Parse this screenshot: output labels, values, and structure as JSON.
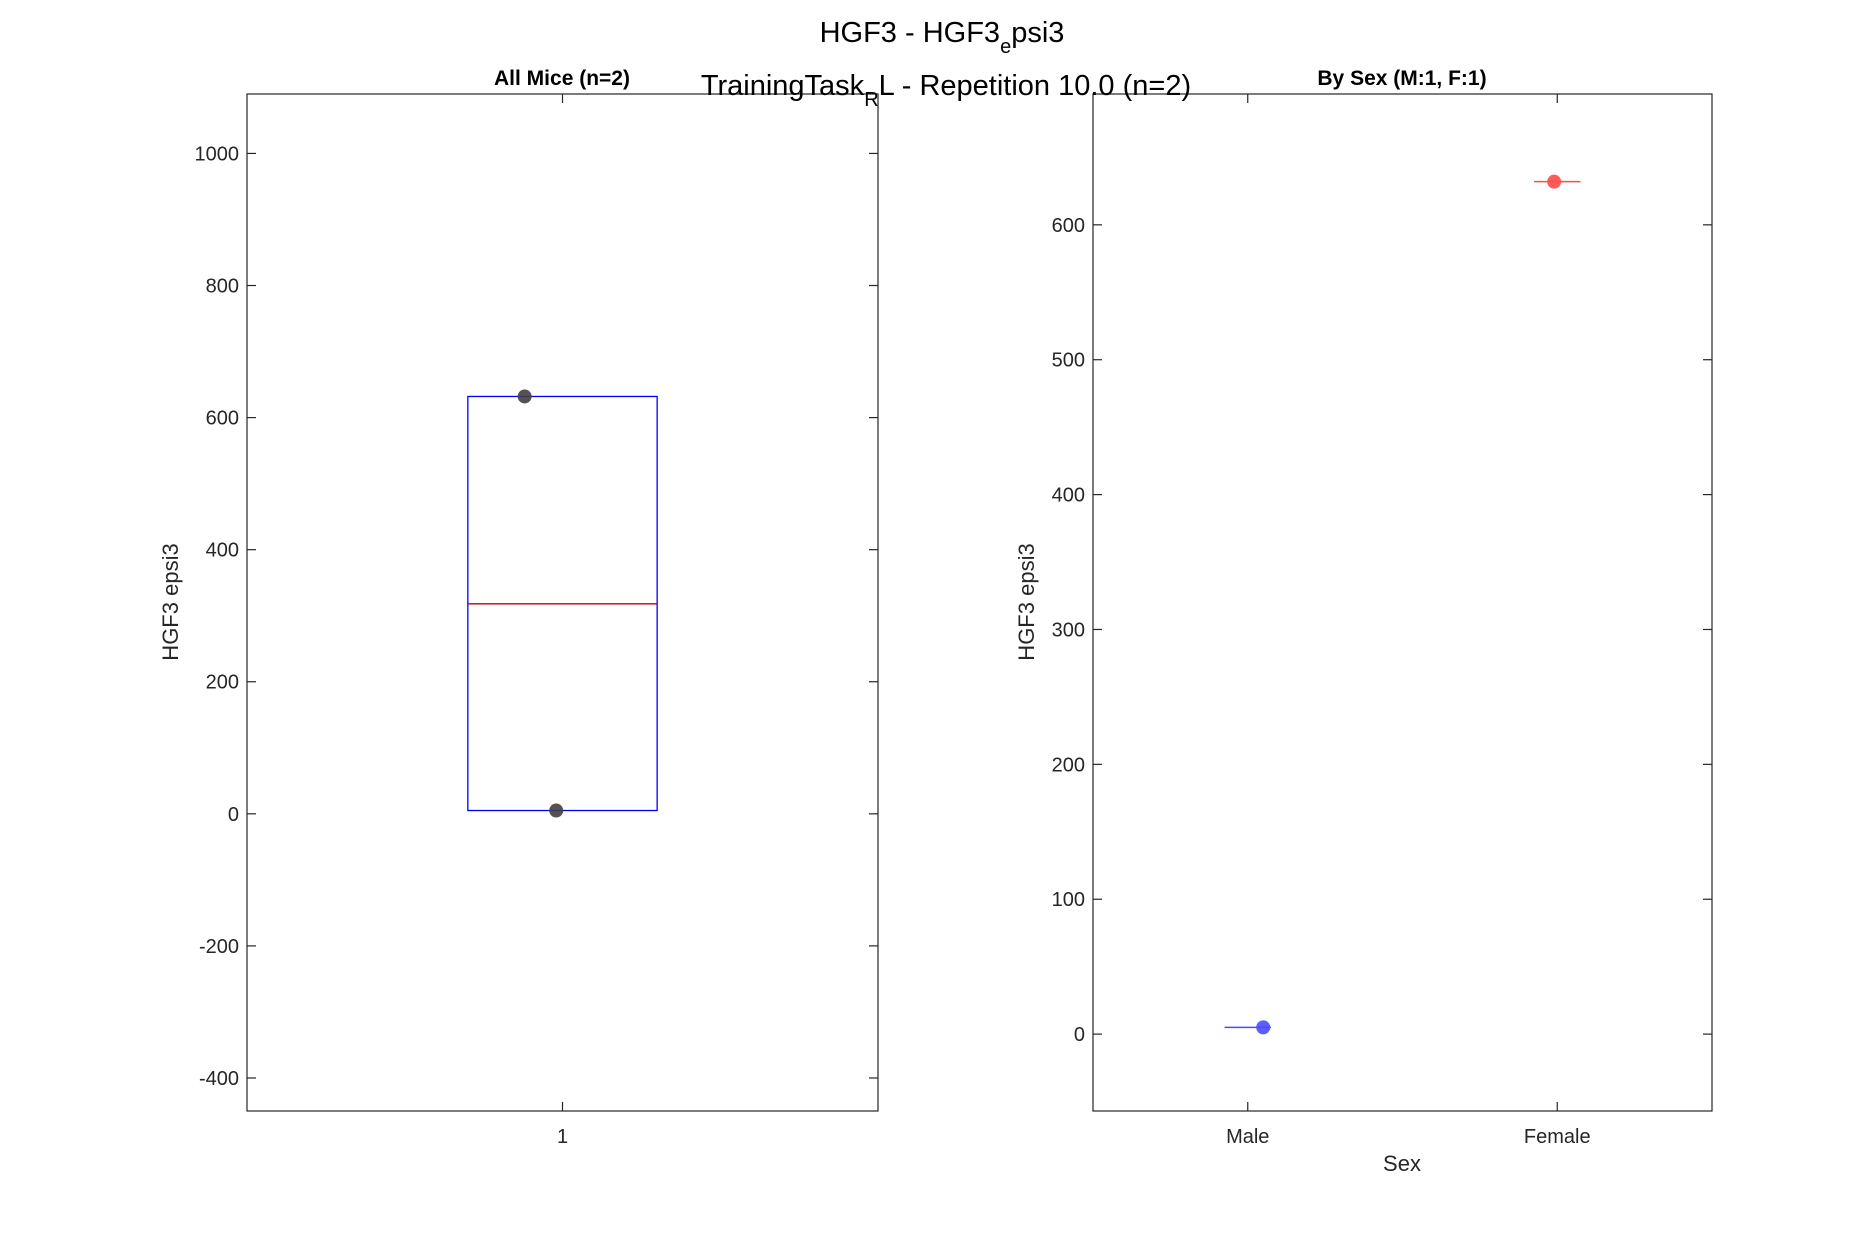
{
  "figure": {
    "title_line1_main": "HGF3 - HGF3",
    "title_line1_sub": "e",
    "title_line1_end": "psi3",
    "title_line2_main": "TrainingTask",
    "title_line2_sub": "R",
    "title_line2_end": "L - Repetition 10.0 (n=2)"
  },
  "chart_data": [
    {
      "type": "box",
      "title": "All Mice (n=2)",
      "xlabel": "",
      "ylabel": "HGF3 epsi3",
      "categories": [
        "1"
      ],
      "ylim": [
        -450,
        1090
      ],
      "yticks": [
        -400,
        -200,
        0,
        200,
        400,
        600,
        800,
        1000
      ],
      "box": {
        "q1": 5,
        "median": 318,
        "q3": 632,
        "color": "#0000ff",
        "median_color": "#c00000"
      },
      "points": [
        {
          "x": 0.94,
          "y": 632,
          "color": "#404040"
        },
        {
          "x": 0.99,
          "y": 5,
          "color": "#404040"
        }
      ]
    },
    {
      "type": "box",
      "title": "By Sex (M:1, F:1)",
      "xlabel": "Sex",
      "ylabel": "HGF3 epsi3",
      "categories": [
        "Male",
        "Female"
      ],
      "ylim": [
        -57,
        697
      ],
      "yticks": [
        0,
        100,
        200,
        300,
        400,
        500,
        600
      ],
      "series": [
        {
          "name": "Male",
          "values": [
            5
          ],
          "median": 5,
          "color": "#4a4aff"
        },
        {
          "name": "Female",
          "values": [
            632
          ],
          "median": 632,
          "color": "#ff4a4a"
        }
      ],
      "points": [
        {
          "x": 1.05,
          "y": 5,
          "color": "#4a4aff"
        },
        {
          "x": 1.99,
          "y": 632,
          "color": "#ff4a4a"
        }
      ]
    }
  ]
}
